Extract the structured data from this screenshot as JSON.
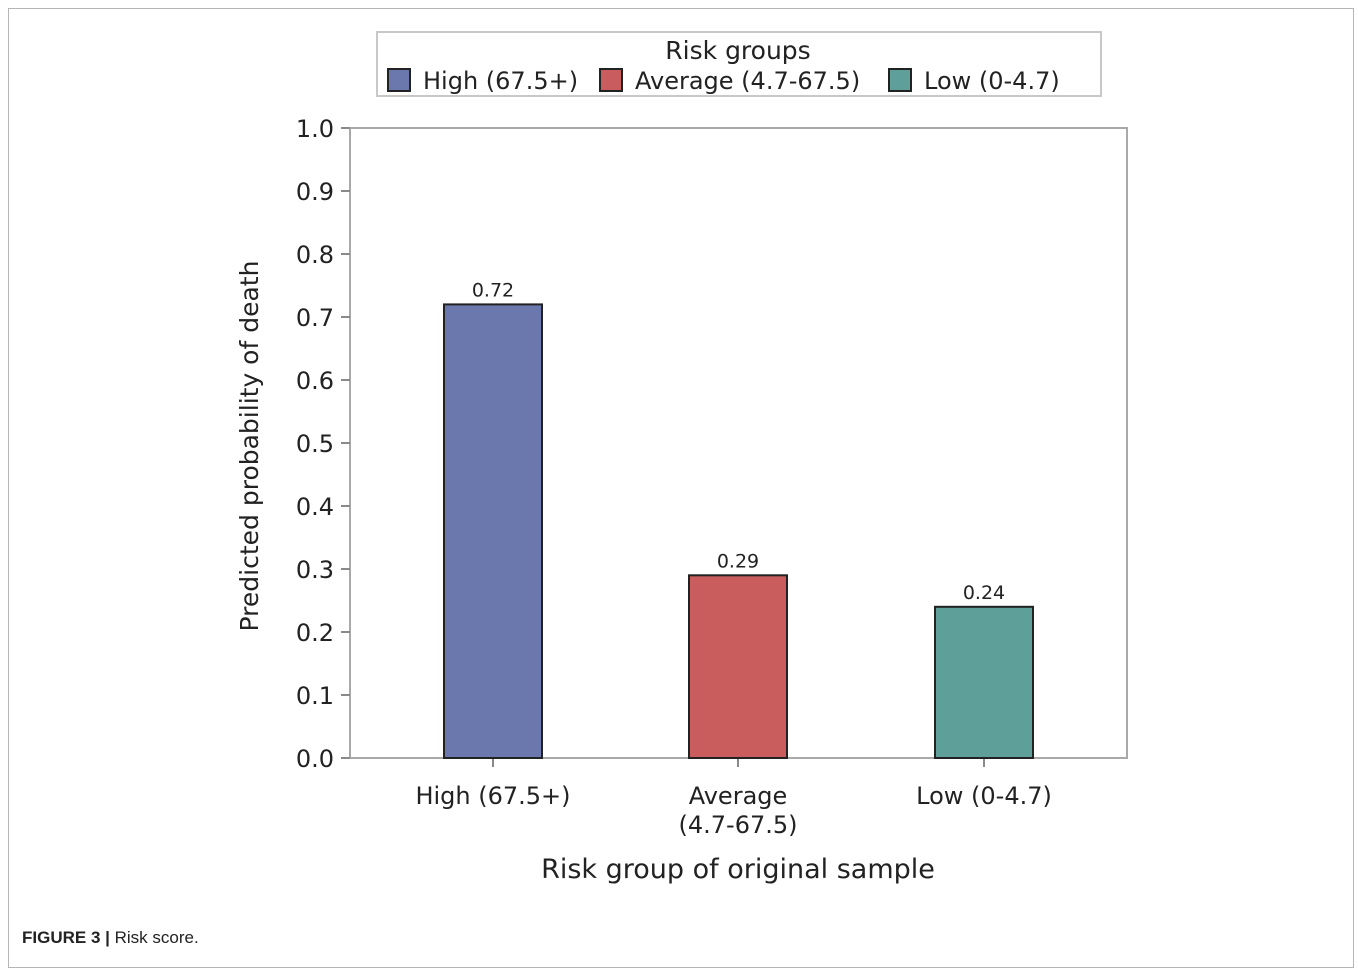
{
  "figure": {
    "label": "FIGURE 3",
    "separator": " | ",
    "caption": "Risk score."
  },
  "chart_data": {
    "type": "bar",
    "categories": [
      "High (67.5+)",
      "Average (4.7-67.5)",
      "Low (0-4.7)"
    ],
    "category_tick_lines": [
      [
        "High (67.5+)"
      ],
      [
        "Average",
        "(4.7-67.5)"
      ],
      [
        "Low (0-4.7)"
      ]
    ],
    "values": [
      0.72,
      0.29,
      0.24
    ],
    "data_labels": [
      "0.72",
      "0.29",
      "0.24"
    ],
    "colors": [
      "#6b78ad",
      "#c95c5c",
      "#5f9f99"
    ],
    "xlabel": "Risk group of original sample",
    "ylabel": "Predicted probability of death",
    "ylim": [
      0,
      1.0
    ],
    "yticks": [
      0.0,
      0.1,
      0.2,
      0.3,
      0.4,
      0.5,
      0.6,
      0.7,
      0.8,
      0.9,
      1.0
    ],
    "ytick_labels": [
      "0.0",
      "0.1",
      "0.2",
      "0.3",
      "0.4",
      "0.5",
      "0.6",
      "0.7",
      "0.8",
      "0.9",
      "1.0"
    ],
    "grid": false,
    "legend": {
      "title": "Risk groups",
      "placement": "top-center",
      "entries": [
        "High (67.5+)",
        "Average (4.7-67.5)",
        "Low (0-4.7)"
      ]
    }
  }
}
